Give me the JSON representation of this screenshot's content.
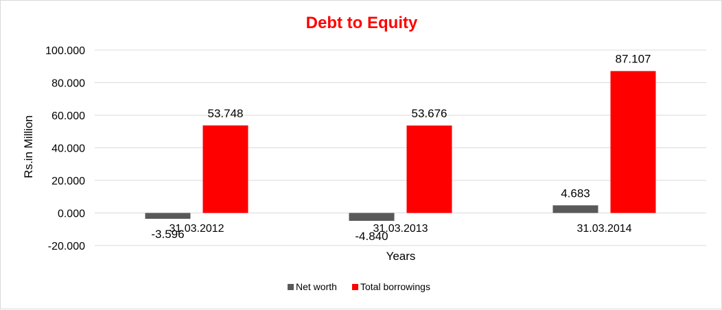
{
  "chart_data": {
    "type": "bar",
    "title": "Debt to Equity",
    "xlabel": "Years",
    "ylabel": "Rs.in Million",
    "categories": [
      "31.03.2012",
      "31.03.2013",
      "31.03.2014"
    ],
    "series": [
      {
        "name": "Net worth",
        "values": [
          -3.596,
          -4.84,
          4.683
        ],
        "labels": [
          "-3.596",
          "-4.840",
          "4.683"
        ],
        "color": "#595959"
      },
      {
        "name": "Total borrowings",
        "values": [
          53.748,
          53.676,
          87.107
        ],
        "labels": [
          "53.748",
          "53.676",
          "87.107"
        ],
        "color": "#ff0000"
      }
    ],
    "ylim": [
      -20,
      100
    ],
    "yticks": [
      100,
      80,
      60,
      40,
      20,
      0,
      -20
    ],
    "ytick_labels": [
      "100.000",
      "80.000",
      "60.000",
      "40.000",
      "20.000",
      "0.000",
      "-20.000"
    ],
    "grid": true,
    "legend": "bottom",
    "colors": {
      "title": "#ff0000",
      "grid": "#d9d9d9"
    }
  }
}
